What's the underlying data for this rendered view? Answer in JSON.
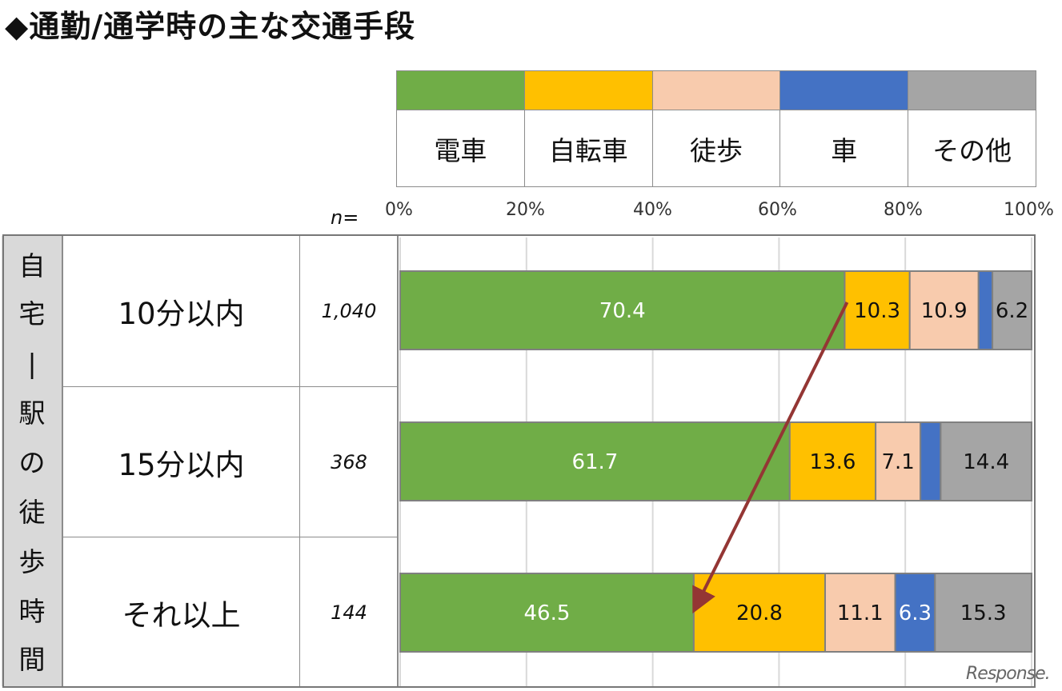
{
  "title": "◆通勤/通学時の主な交通手段",
  "legend": [
    {
      "label": "電車",
      "color": "#70ad47"
    },
    {
      "label": "自転車",
      "color": "#ffc000"
    },
    {
      "label": "徒歩",
      "color": "#f8cbad"
    },
    {
      "label": "車",
      "color": "#4472c4"
    },
    {
      "label": "その他",
      "color": "#a5a5a5"
    }
  ],
  "axis": {
    "n_label": "n=",
    "ticks": [
      "0%",
      "20%",
      "40%",
      "60%",
      "80%",
      "100%"
    ]
  },
  "row_header": [
    "自",
    "宅",
    "|",
    "駅",
    "の",
    "徒",
    "歩",
    "時",
    "間"
  ],
  "rows": [
    {
      "label": "10分以内",
      "n": "1,040"
    },
    {
      "label": "15分以内",
      "n": "368"
    },
    {
      "label": "それ以上",
      "n": "144"
    }
  ],
  "watermark": "Response.",
  "chart_data": {
    "type": "bar",
    "orientation": "horizontal",
    "stacked": true,
    "title": "◆通勤/通学時の主な交通手段",
    "categories": [
      "10分以内",
      "15分以内",
      "それ以上"
    ],
    "xlim": [
      0,
      100
    ],
    "grid": true,
    "legend_position": "top",
    "series": [
      {
        "name": "電車",
        "values": [
          70.4,
          61.7,
          46.5
        ],
        "labels": [
          "70.4",
          "61.7",
          "46.5"
        ],
        "color": "#70ad47",
        "label_color": "#ffffff"
      },
      {
        "name": "自転車",
        "values": [
          10.3,
          13.6,
          20.8
        ],
        "labels": [
          "10.3",
          "13.6",
          "20.8"
        ],
        "color": "#ffc000",
        "label_color": "#111111"
      },
      {
        "name": "徒歩",
        "values": [
          10.9,
          7.1,
          11.1
        ],
        "labels": [
          "10.9",
          "7.1",
          "11.1"
        ],
        "color": "#f8cbad",
        "label_color": "#111111"
      },
      {
        "name": "車",
        "values": [
          2.2,
          3.2,
          6.3
        ],
        "labels": [
          "",
          "",
          "6.3"
        ],
        "color": "#4472c4",
        "label_color": "#ffffff"
      },
      {
        "name": "その他",
        "values": [
          6.2,
          14.4,
          15.3
        ],
        "labels": [
          "6.2",
          "14.4",
          "15.3"
        ],
        "color": "#a5a5a5",
        "label_color": "#111111"
      }
    ],
    "annotation": {
      "type": "arrow",
      "from": {
        "row": 0,
        "value": 70.4
      },
      "to": {
        "row": 2,
        "value": 46.5
      },
      "color": "#943634"
    }
  }
}
